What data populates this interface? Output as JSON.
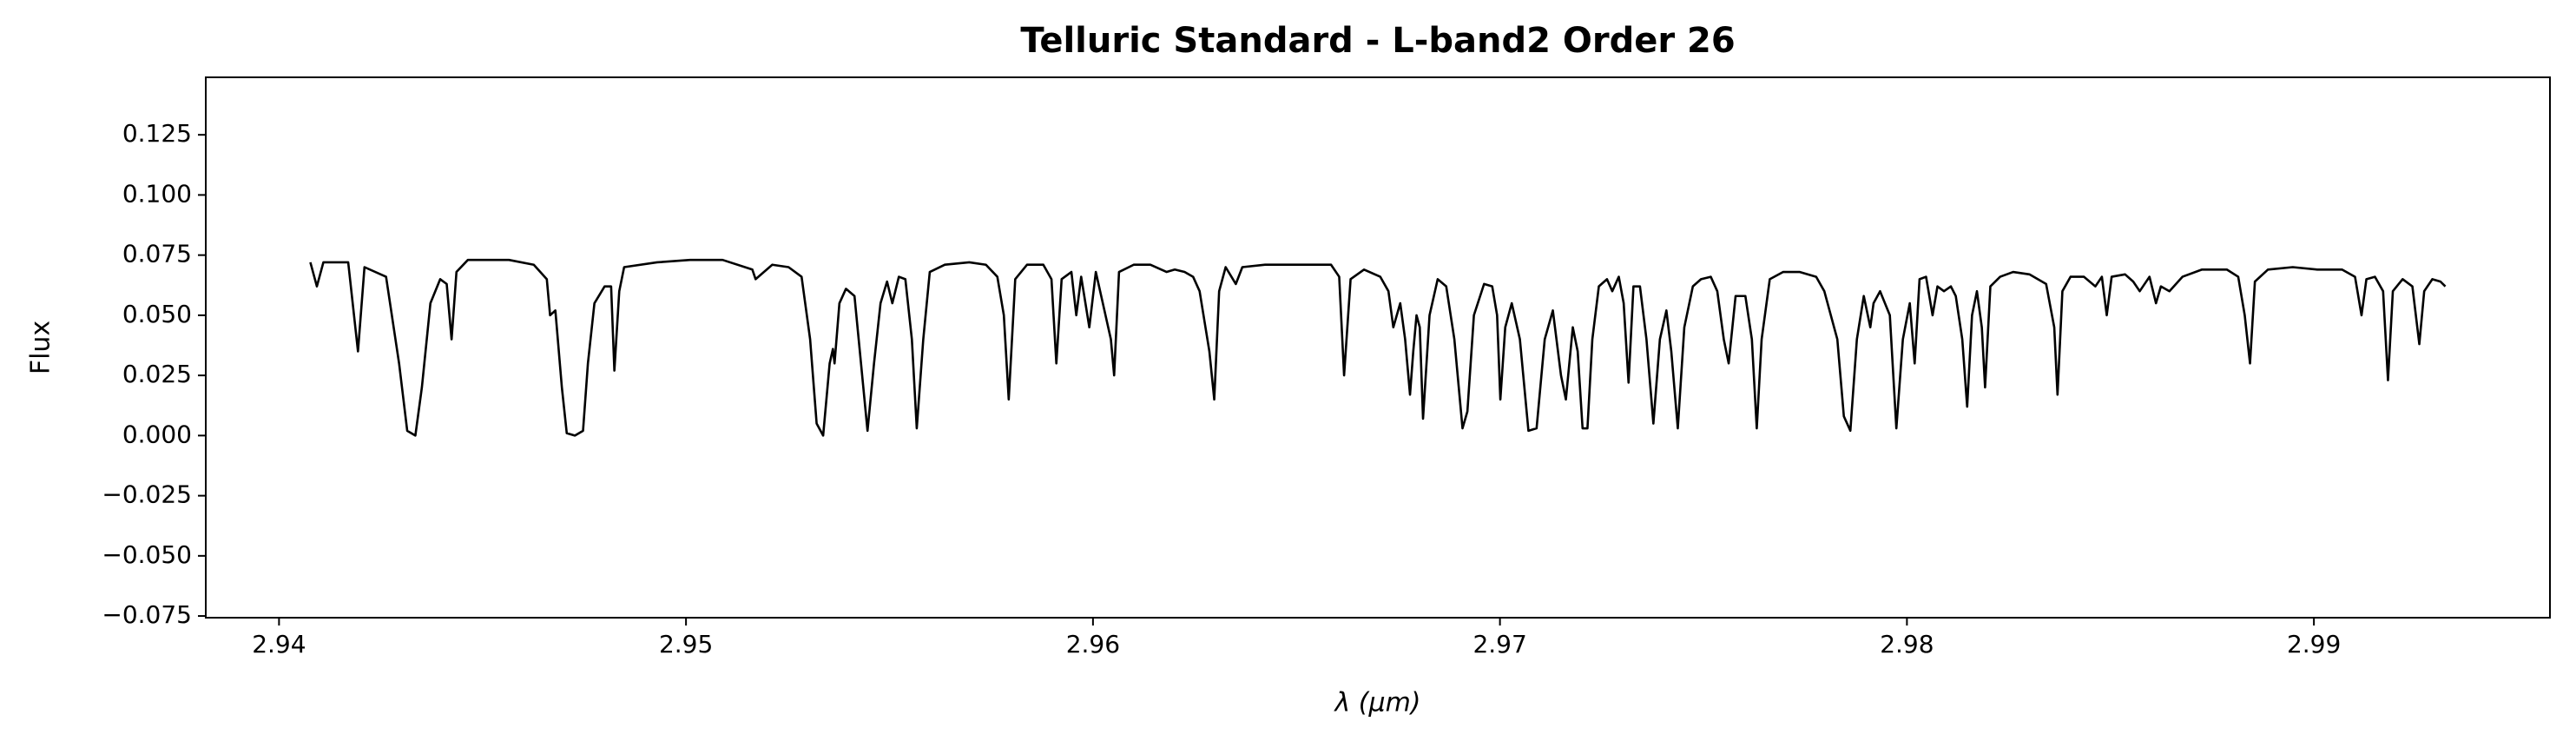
{
  "chart_data": {
    "type": "line",
    "title": "Telluric Standard - L-band2 Order 26",
    "xlabel": "λ (μm)",
    "ylabel": "Flux",
    "xlim": [
      2.9382,
      2.9958
    ],
    "ylim": [
      -0.0757,
      0.1489
    ],
    "xticks": [
      2.94,
      2.95,
      2.96,
      2.97,
      2.98,
      2.99
    ],
    "yticks": [
      0.125,
      {
        "value": 0.1,
        "label": "0.100"
      },
      0.075,
      {
        "value": 0.05,
        "label": "0.050"
      },
      0.025,
      {
        "value": 0,
        "label": "0.000"
      },
      {
        "value": -0.025,
        "label": "−0.025"
      },
      {
        "value": -0.05,
        "label": "−0.050"
      },
      {
        "value": -0.075,
        "label": "−0.075"
      }
    ],
    "grid": false,
    "x": [
      2.94077,
      2.94093,
      2.94109,
      2.9417,
      2.94194,
      2.9421,
      2.94263,
      2.94295,
      2.94315,
      2.94335,
      2.94351,
      2.94372,
      2.94396,
      2.94412,
      2.94424,
      2.94436,
      2.94464,
      2.94565,
      2.94626,
      2.94658,
      2.94666,
      2.94679,
      2.94695,
      2.94707,
      2.94727,
      2.94747,
      2.94759,
      2.94775,
      2.948,
      2.94816,
      2.94824,
      2.94836,
      2.94848,
      2.94929,
      2.9501,
      2.9509,
      2.95163,
      2.95171,
      2.95212,
      2.95252,
      2.95284,
      2.95305,
      2.95321,
      2.95337,
      2.95353,
      2.95361,
      2.95365,
      2.95377,
      2.95393,
      2.95414,
      2.9543,
      2.95446,
      2.95462,
      2.95478,
      2.95494,
      2.95507,
      2.95523,
      2.95539,
      2.95555,
      2.95567,
      2.95583,
      2.95599,
      2.95636,
      2.95696,
      2.95737,
      2.95765,
      2.95781,
      2.95793,
      2.95809,
      2.95838,
      2.95878,
      2.95898,
      2.9591,
      2.95923,
      2.95947,
      2.95959,
      2.95971,
      2.95991,
      2.96007,
      2.96044,
      2.96052,
      2.96064,
      2.961,
      2.96141,
      2.96181,
      2.96201,
      2.96225,
      2.96246,
      2.96262,
      2.96286,
      2.96298,
      2.9631,
      2.96326,
      2.96351,
      2.96367,
      2.96423,
      2.96504,
      2.96585,
      2.96605,
      2.96617,
      2.96633,
      2.96666,
      2.96706,
      2.96726,
      2.96738,
      2.96755,
      2.96767,
      2.96779,
      2.96787,
      2.96795,
      2.96803,
      2.96811,
      2.96827,
      2.96847,
      2.96868,
      2.96888,
      2.96908,
      2.9692,
      2.96936,
      2.96961,
      2.96981,
      2.96993,
      2.97001,
      2.97013,
      2.97029,
      2.97049,
      2.9707,
      2.9709,
      2.9711,
      2.9713,
      2.9715,
      2.97162,
      2.97179,
      2.97191,
      2.97203,
      2.97215,
      2.97227,
      2.97243,
      2.97263,
      2.97276,
      2.97292,
      2.97304,
      2.97316,
      2.97328,
      2.97344,
      2.9736,
      2.97377,
      2.97393,
      2.97409,
      2.97421,
      2.97437,
      2.97453,
      2.97474,
      2.97494,
      2.97518,
      2.97534,
      2.9755,
      2.97562,
      2.97579,
      2.97603,
      2.97619,
      2.97631,
      2.97643,
      2.97663,
      2.97696,
      2.97736,
      2.97777,
      2.97797,
      2.97829,
      2.97845,
      2.97861,
      2.97877,
      2.97894,
      2.9791,
      2.97918,
      2.97934,
      2.97958,
      2.97974,
      2.9799,
      2.98007,
      2.98019,
      2.98031,
      2.98047,
      2.98063,
      2.98075,
      2.98091,
      2.98108,
      2.9812,
      2.98136,
      2.98148,
      2.9816,
      2.98172,
      2.98184,
      2.98192,
      2.98205,
      2.98229,
      2.98261,
      2.98301,
      2.98342,
      2.98362,
      2.9837,
      2.98382,
      2.98402,
      2.98435,
      2.98463,
      2.98479,
      2.98491,
      2.98503,
      2.98536,
      2.98556,
      2.98572,
      2.98596,
      2.98612,
      2.98624,
      2.98645,
      2.98677,
      2.98725,
      2.98786,
      2.98814,
      2.9883,
      2.98843,
      2.98855,
      2.98887,
      2.98948,
      2.99008,
      2.99069,
      2.99101,
      2.99117,
      2.99129,
      2.9915,
      2.9917,
      2.99182,
      2.99194,
      2.99218,
      2.99242,
      2.99259,
      2.99271,
      2.99291,
      2.99311,
      2.99323
    ],
    "series": [
      {
        "color": "#000000",
        "values": [
          0.072,
          0.062,
          0.072,
          0.072,
          0.035,
          0.07,
          0.066,
          0.03,
          0.002,
          0.0,
          0.02,
          0.055,
          0.065,
          0.063,
          0.04,
          0.068,
          0.073,
          0.073,
          0.071,
          0.065,
          0.05,
          0.052,
          0.02,
          0.001,
          0.0,
          0.002,
          0.03,
          0.055,
          0.062,
          0.062,
          0.027,
          0.06,
          0.07,
          0.072,
          0.073,
          0.073,
          0.069,
          0.065,
          0.071,
          0.07,
          0.066,
          0.04,
          0.005,
          0.0,
          0.03,
          0.036,
          0.03,
          0.055,
          0.061,
          0.058,
          0.03,
          0.002,
          0.03,
          0.055,
          0.064,
          0.055,
          0.066,
          0.065,
          0.04,
          0.003,
          0.04,
          0.068,
          0.071,
          0.072,
          0.071,
          0.066,
          0.05,
          0.015,
          0.065,
          0.071,
          0.071,
          0.065,
          0.03,
          0.065,
          0.068,
          0.05,
          0.066,
          0.045,
          0.068,
          0.04,
          0.025,
          0.068,
          0.071,
          0.071,
          0.068,
          0.069,
          0.068,
          0.066,
          0.06,
          0.035,
          0.015,
          0.06,
          0.07,
          0.063,
          0.07,
          0.071,
          0.071,
          0.071,
          0.066,
          0.025,
          0.065,
          0.069,
          0.066,
          0.06,
          0.045,
          0.055,
          0.04,
          0.017,
          0.035,
          0.05,
          0.045,
          0.007,
          0.05,
          0.065,
          0.062,
          0.04,
          0.003,
          0.01,
          0.05,
          0.063,
          0.062,
          0.05,
          0.015,
          0.045,
          0.055,
          0.04,
          0.002,
          0.003,
          0.04,
          0.052,
          0.025,
          0.015,
          0.045,
          0.035,
          0.003,
          0.003,
          0.04,
          0.062,
          0.065,
          0.06,
          0.066,
          0.055,
          0.022,
          0.062,
          0.062,
          0.04,
          0.005,
          0.04,
          0.052,
          0.035,
          0.003,
          0.045,
          0.062,
          0.065,
          0.066,
          0.06,
          0.04,
          0.03,
          0.058,
          0.058,
          0.04,
          0.003,
          0.04,
          0.065,
          0.068,
          0.068,
          0.066,
          0.06,
          0.04,
          0.008,
          0.002,
          0.04,
          0.058,
          0.045,
          0.055,
          0.06,
          0.05,
          0.003,
          0.04,
          0.055,
          0.03,
          0.065,
          0.066,
          0.05,
          0.062,
          0.06,
          0.062,
          0.058,
          0.04,
          0.012,
          0.05,
          0.06,
          0.045,
          0.02,
          0.062,
          0.066,
          0.068,
          0.067,
          0.063,
          0.045,
          0.017,
          0.06,
          0.066,
          0.066,
          0.062,
          0.066,
          0.05,
          0.066,
          0.067,
          0.064,
          0.06,
          0.066,
          0.055,
          0.062,
          0.06,
          0.066,
          0.069,
          0.069,
          0.066,
          0.05,
          0.03,
          0.064,
          0.069,
          0.07,
          0.069,
          0.069,
          0.066,
          0.05,
          0.065,
          0.066,
          0.06,
          0.023,
          0.06,
          0.065,
          0.062,
          0.038,
          0.06,
          0.065,
          0.064,
          0.062
        ]
      }
    ]
  }
}
